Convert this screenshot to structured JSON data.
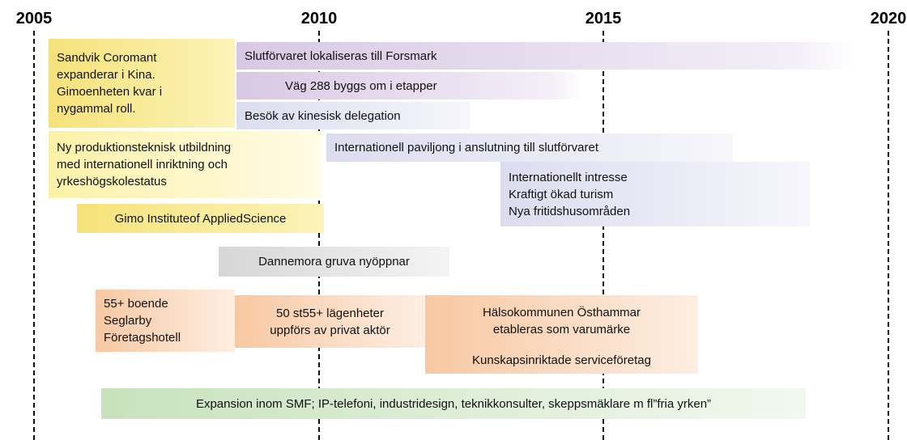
{
  "years": [
    "2005",
    "2010",
    "2015",
    "2020"
  ],
  "items": [
    {
      "lines": [
        "Sandvik Coromant",
        "expanderar i Kina.",
        "Gimoenheten kvar i",
        "nygammal roll."
      ]
    },
    {
      "lines": [
        "Slutförvaret lokaliseras till Forsmark"
      ]
    },
    {
      "lines": [
        "Väg 288 byggs om i etapper"
      ]
    },
    {
      "lines": [
        "Besök av kinesisk delegation"
      ]
    },
    {
      "lines": [
        "Ny produktionsteknisk utbildning",
        "med internationell inriktning och",
        "yrkeshögskolestatus"
      ]
    },
    {
      "lines": [
        "Internationell paviljong i anslutning till slutförvaret"
      ]
    },
    {
      "lines": [
        "Internationellt intresse",
        "Kraftigt ökad turism",
        "Nya fritidshusområden"
      ]
    },
    {
      "lines": [
        "Gimo Instituteof AppliedScience"
      ]
    },
    {
      "lines": [
        "Dannemora gruva nyöppnar"
      ]
    },
    {
      "lines": [
        "55+ boende",
        "Seglarby",
        "Företagshotell"
      ]
    },
    {
      "lines": [
        "50 st55+ lägenheter",
        "uppförs av privat aktör"
      ]
    },
    {
      "lines": [
        "Hälsokommunen Östhammar",
        "etableras som varumärke"
      ]
    },
    {
      "lines": [
        "Kunskapsinriktade serviceföretag"
      ]
    },
    {
      "lines": [
        "Expansion inom SMF; IP-telefoni, industridesign, teknikkonsulter, skeppsmäklare m fl”fria yrken”"
      ]
    }
  ]
}
